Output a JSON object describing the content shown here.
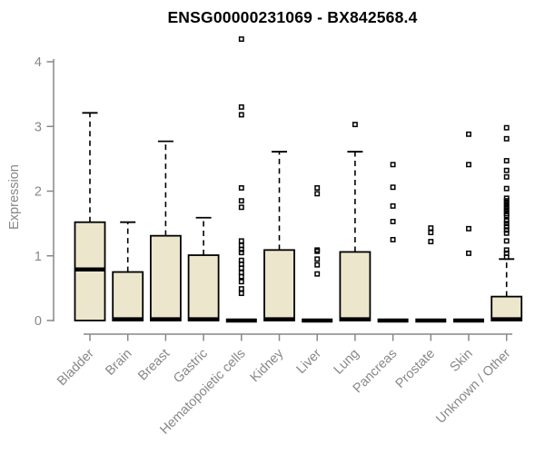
{
  "chart_data": {
    "type": "boxplot",
    "title": "ENSG00000231069 - BX842568.4",
    "ylabel": "Expression",
    "ylim": [
      0,
      4.4
    ],
    "yticks": [
      0,
      1,
      2,
      3,
      4
    ],
    "grid": false,
    "legend": "none",
    "box_fill_color": "#ECE7CC",
    "box_border_color": "#000000",
    "axis_color": "#878787",
    "categories": [
      "Bladder",
      "Brain",
      "Breast",
      "Gastric",
      "Hematopoietic cells",
      "Kidney",
      "Liver",
      "Lung",
      "Pancreas",
      "Prostate",
      "Skin",
      "Unknown / Other"
    ],
    "series": [
      {
        "name": "Bladder",
        "whisker_low": 0,
        "q1": 0,
        "median": 0.79,
        "q3": 1.52,
        "whisker_high": 3.21,
        "outliers": []
      },
      {
        "name": "Brain",
        "whisker_low": 0,
        "q1": 0,
        "median": 0.02,
        "q3": 0.75,
        "whisker_high": 1.52,
        "outliers": []
      },
      {
        "name": "Breast",
        "whisker_low": 0,
        "q1": 0,
        "median": 0.02,
        "q3": 1.31,
        "whisker_high": 2.77,
        "outliers": []
      },
      {
        "name": "Gastric",
        "whisker_low": 0,
        "q1": 0,
        "median": 0.02,
        "q3": 1.01,
        "whisker_high": 1.59,
        "outliers": []
      },
      {
        "name": "Hematopoietic cells",
        "whisker_low": 0,
        "q1": 0,
        "median": 0,
        "q3": 0,
        "whisker_high": 0,
        "outliers": [
          4.35,
          3.3,
          3.18,
          2.05,
          1.85,
          1.75,
          1.23,
          1.16,
          1.1,
          1.05,
          0.93,
          0.87,
          0.81,
          0.74,
          0.68,
          0.6,
          0.49,
          0.42
        ]
      },
      {
        "name": "Kidney",
        "whisker_low": 0,
        "q1": 0,
        "median": 0.02,
        "q3": 1.09,
        "whisker_high": 2.61,
        "outliers": []
      },
      {
        "name": "Liver",
        "whisker_low": 0,
        "q1": 0,
        "median": 0,
        "q3": 0,
        "whisker_high": 0,
        "outliers": [
          2.05,
          1.96,
          1.09,
          1.07,
          0.95,
          0.86,
          0.72
        ]
      },
      {
        "name": "Lung",
        "whisker_low": 0,
        "q1": 0,
        "median": 0.02,
        "q3": 1.06,
        "whisker_high": 2.61,
        "outliers": [
          3.03
        ]
      },
      {
        "name": "Pancreas",
        "whisker_low": 0,
        "q1": 0,
        "median": 0,
        "q3": 0,
        "whisker_high": 0,
        "outliers": [
          2.41,
          2.06,
          1.77,
          1.53,
          1.25
        ]
      },
      {
        "name": "Prostate",
        "whisker_low": 0,
        "q1": 0,
        "median": 0,
        "q3": 0,
        "whisker_high": 0,
        "outliers": [
          1.43,
          1.36,
          1.22
        ]
      },
      {
        "name": "Skin",
        "whisker_low": 0,
        "q1": 0,
        "median": 0,
        "q3": 0,
        "whisker_high": 0,
        "outliers": [
          2.88,
          2.41,
          1.42,
          1.04
        ]
      },
      {
        "name": "Unknown / Other",
        "whisker_low": 0,
        "q1": 0,
        "median": 0.02,
        "q3": 0.37,
        "whisker_high": 0.95,
        "outliers": [
          2.98,
          2.81,
          2.47,
          2.32,
          2.22,
          2.04,
          1.89,
          1.85,
          1.81,
          1.77,
          1.73,
          1.69,
          1.65,
          1.62,
          1.54,
          1.5,
          1.45,
          1.4,
          1.35,
          1.23,
          1.09,
          1.04,
          0.98
        ]
      }
    ]
  }
}
